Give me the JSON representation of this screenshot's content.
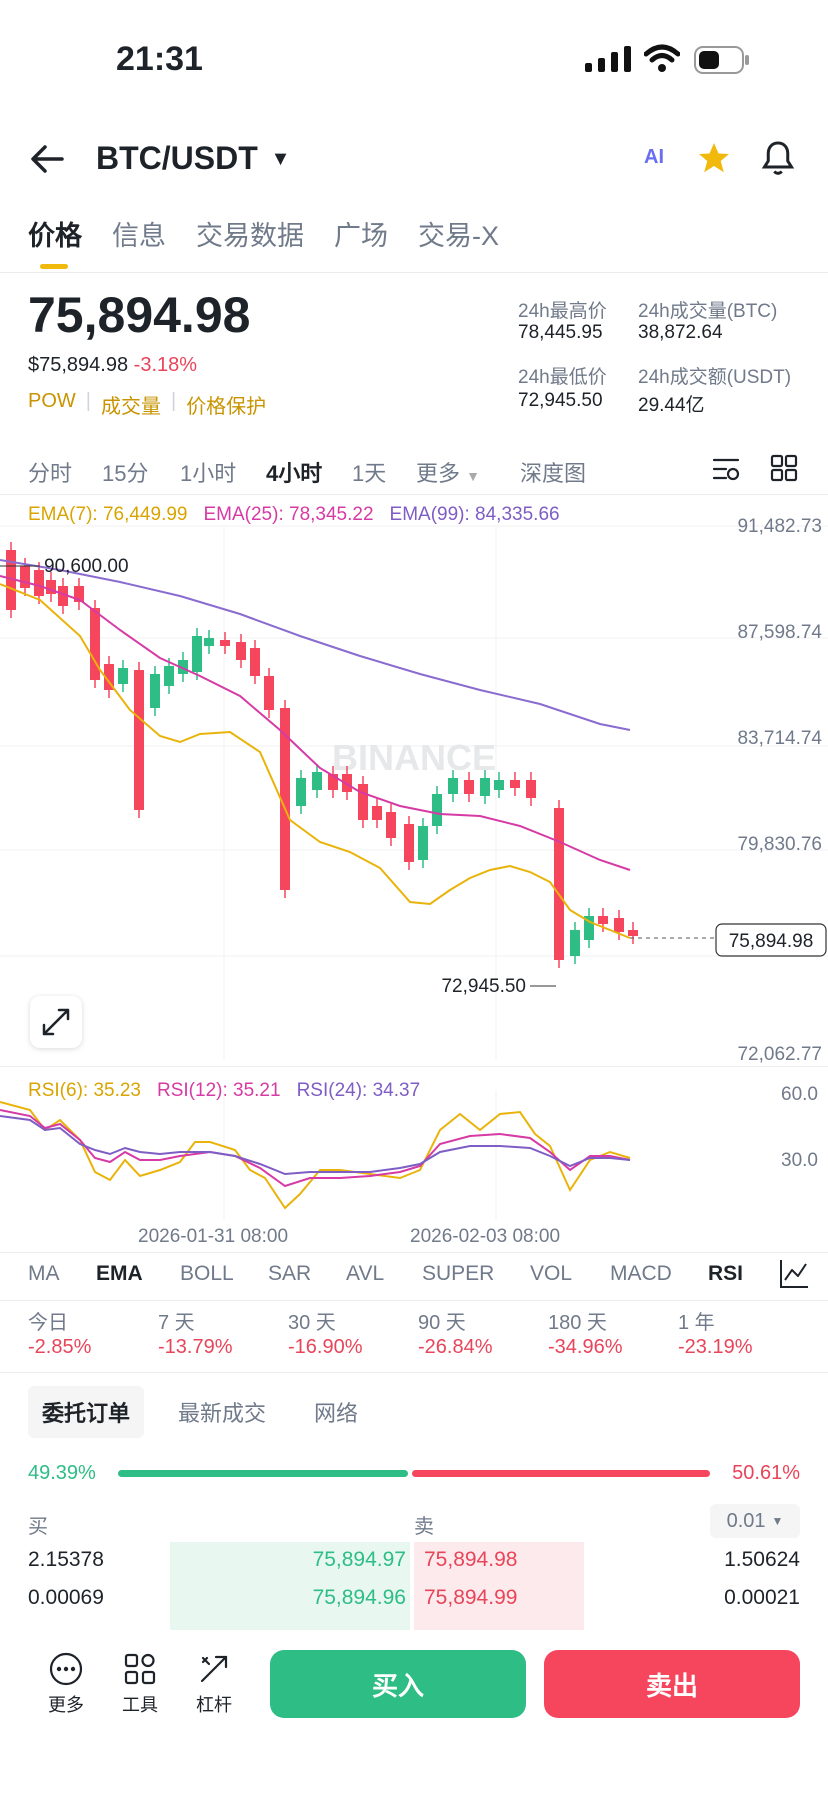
{
  "status": {
    "time": "21:31"
  },
  "header": {
    "pair": "BTC/USDT",
    "ai_label": "AI"
  },
  "tabs": [
    {
      "label": "价格"
    },
    {
      "label": "信息"
    },
    {
      "label": "交易数据"
    },
    {
      "label": "广场"
    },
    {
      "label": "交易-X"
    }
  ],
  "price": {
    "last": "75,894.98",
    "usd": "$75,894.98",
    "change": "-3.18%",
    "tags": [
      "POW",
      "成交量",
      "价格保护"
    ]
  },
  "stats": {
    "high_label": "24h最高价",
    "high": "78,445.95",
    "vol_btc_label": "24h成交量(BTC)",
    "vol_btc": "38,872.64",
    "low_label": "24h最低价",
    "low": "72,945.50",
    "vol_usdt_label": "24h成交额(USDT)",
    "vol_usdt": "29.44亿"
  },
  "intervals": [
    "分时",
    "15分",
    "1小时",
    "4小时",
    "1天",
    "更多",
    "深度图"
  ],
  "active_interval": "4小时",
  "ema": {
    "ema7": "EMA(7): 76,449.99",
    "ema25": "EMA(25): 78,345.22",
    "ema99": "EMA(99): 84,335.66"
  },
  "price_axis": [
    "91,482.73",
    "87,598.74",
    "83,714.74",
    "79,830.76",
    "75,894.98",
    "72,062.77"
  ],
  "price_marks": {
    "high": "90,600.00",
    "low": "72,945.50",
    "current": "75,894.98"
  },
  "watermark": "BINANCE",
  "rsi": {
    "rsi6": "RSI(6): 35.23",
    "rsi12": "RSI(12): 35.21",
    "rsi24": "RSI(24): 34.37",
    "axis": [
      "60.0",
      "30.0"
    ]
  },
  "time_axis": [
    "2026-01-31 08:00",
    "2026-02-03 08:00"
  ],
  "indicators": [
    "MA",
    "EMA",
    "BOLL",
    "SAR",
    "AVL",
    "SUPER",
    "VOL",
    "MACD",
    "RSI"
  ],
  "performance": [
    {
      "label": "今日",
      "value": "-2.85%"
    },
    {
      "label": "7 天",
      "value": "-13.79%"
    },
    {
      "label": "30 天",
      "value": "-16.90%"
    },
    {
      "label": "90 天",
      "value": "-26.84%"
    },
    {
      "label": "180 天",
      "value": "-34.96%"
    },
    {
      "label": "1 年",
      "value": "-23.19%"
    }
  ],
  "orderbook": {
    "tabs": [
      "委托订单",
      "最新成交",
      "网络"
    ],
    "buy_pct": "49.39%",
    "sell_pct": "50.61%",
    "buy_label": "买",
    "sell_label": "卖",
    "precision": "0.01",
    "rows": [
      {
        "bid_qty": "2.15378",
        "bid": "75,894.97",
        "ask": "75,894.98",
        "ask_qty": "1.50624"
      },
      {
        "bid_qty": "0.00069",
        "bid": "75,894.96",
        "ask": "75,894.99",
        "ask_qty": "0.00021"
      }
    ]
  },
  "bottom": {
    "more": "更多",
    "tools": "工具",
    "leverage": "杠杆",
    "buy": "买入",
    "sell": "卖出"
  },
  "colors": {
    "up": "#2ebd85",
    "down": "#f6465d",
    "ema7": "#f0b90b",
    "ema25": "#d63aa4",
    "ema99": "#7e5dc4",
    "accent": "#f0b90b"
  }
}
